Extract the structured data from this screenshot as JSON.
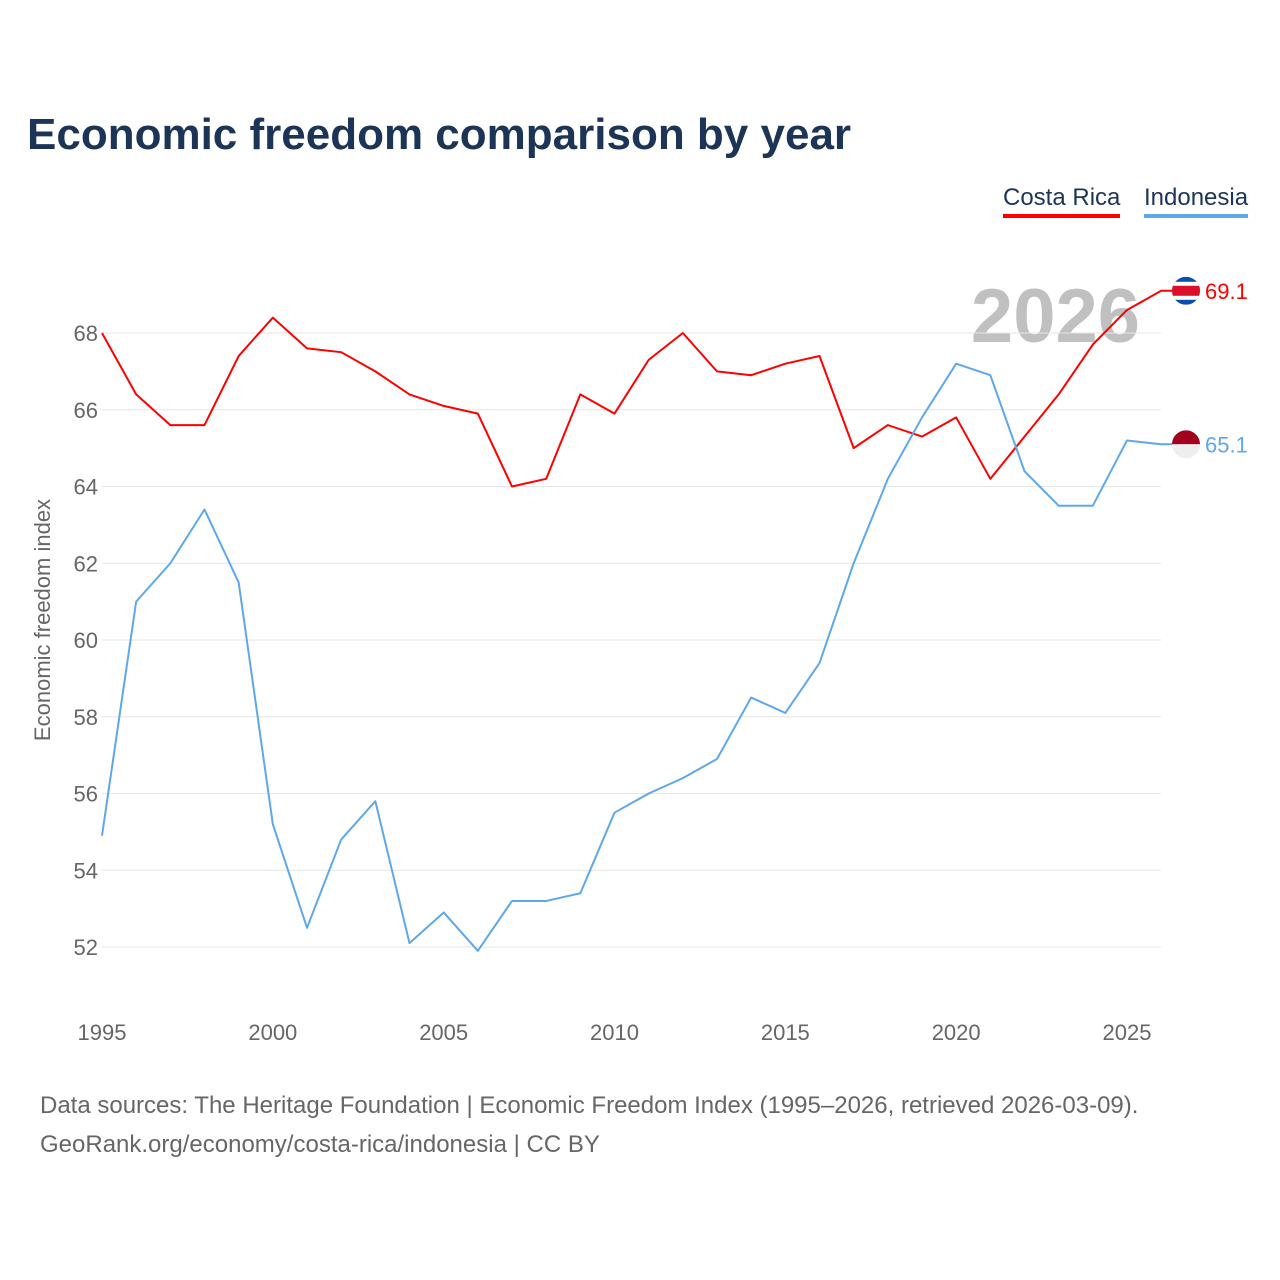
{
  "chart_data": {
    "type": "line",
    "title": "Economic freedom comparison by year",
    "xlabel": "",
    "ylabel": "Economic freedom index",
    "xlim": [
      1995,
      2026
    ],
    "ylim": [
      50.5,
      69.5
    ],
    "yticks": [
      52,
      54,
      56,
      58,
      60,
      62,
      64,
      66,
      68
    ],
    "xticks": [
      1995,
      2000,
      2005,
      2010,
      2015,
      2020,
      2025
    ],
    "grid": true,
    "legend_placement": "top-right",
    "watermark_year": "2026",
    "x": [
      1995,
      1996,
      1997,
      1998,
      1999,
      2000,
      2001,
      2002,
      2003,
      2004,
      2005,
      2006,
      2007,
      2008,
      2009,
      2010,
      2011,
      2012,
      2013,
      2014,
      2015,
      2016,
      2017,
      2018,
      2019,
      2020,
      2021,
      2022,
      2023,
      2024,
      2025,
      2026
    ],
    "series": [
      {
        "name": "Costa Rica",
        "color": "#ff0000",
        "end_label": "69.1",
        "values": [
          68.0,
          66.4,
          65.6,
          65.6,
          67.4,
          68.4,
          67.6,
          67.5,
          67.0,
          66.4,
          66.1,
          65.9,
          64.0,
          64.2,
          66.4,
          65.9,
          67.3,
          68.0,
          67.0,
          66.9,
          67.2,
          67.4,
          65.0,
          65.6,
          65.3,
          65.8,
          64.2,
          65.3,
          66.4,
          67.7,
          68.6,
          69.1
        ]
      },
      {
        "name": "Indonesia",
        "color": "#5ea8ea",
        "end_label": "65.1",
        "values": [
          54.9,
          61.0,
          62.0,
          63.4,
          61.5,
          55.2,
          52.5,
          54.8,
          55.8,
          52.1,
          52.9,
          51.9,
          53.2,
          53.2,
          53.4,
          55.5,
          56.0,
          56.4,
          56.9,
          58.5,
          58.1,
          59.4,
          62.0,
          64.2,
          65.8,
          67.2,
          66.9,
          64.4,
          63.5,
          63.5,
          65.2,
          65.1
        ]
      }
    ]
  },
  "footer": {
    "line1": "Data sources: The Heritage Foundation | Economic Freedom Index (1995–2026, retrieved 2026-03-09).",
    "line2": "GeoRank.org/economy/costa-rica/indonesia | CC BY"
  }
}
